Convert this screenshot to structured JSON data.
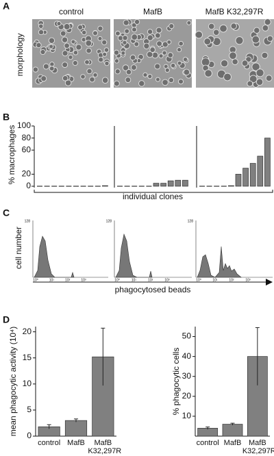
{
  "panel_labels": [
    "A",
    "B",
    "C",
    "D"
  ],
  "panel_a": {
    "columns": [
      "control",
      "MafB",
      "MafB K32,297R"
    ],
    "row_label": "morphology"
  },
  "panel_c": {
    "y_label": "cell number",
    "x_label": "phagocytosed beads",
    "ytick_label": "128",
    "xtick_labels": [
      "10⁰",
      "10¹",
      "10²",
      "10³"
    ]
  },
  "chart_data": [
    {
      "type": "bar",
      "y_label": "% macrophages",
      "x_label": "individual clones",
      "color": "#808080",
      "groups": [
        {
          "values": [
            0,
            0,
            0,
            0,
            0,
            0,
            0,
            0,
            0,
            1
          ]
        },
        {
          "values": [
            0,
            0,
            0,
            0,
            0,
            5,
            5,
            9,
            10,
            10
          ]
        },
        {
          "values": [
            0,
            0,
            0,
            0,
            1,
            20,
            30,
            38,
            50,
            80
          ]
        }
      ],
      "ylim": [
        0,
        100
      ],
      "yticks": [
        0,
        20,
        60,
        80,
        100
      ]
    },
    {
      "type": "errorbar",
      "y_label": "mean phagocytic activity (10⁴)",
      "color": "#808080",
      "categories": [
        "control",
        "MafB",
        "MafB K32,297R"
      ],
      "values": [
        1.8,
        3.0,
        15.2
      ],
      "errors": [
        0.4,
        0.3,
        5.5
      ],
      "ylim": [
        0,
        21
      ],
      "yticks": [
        0,
        5,
        10,
        15,
        20
      ]
    },
    {
      "type": "errorbar",
      "y_label": "% phagocytic cells",
      "color": "#808080",
      "categories": [
        "control",
        "MafB",
        "MafB K32,297R"
      ],
      "values": [
        4,
        6,
        40
      ],
      "errors": [
        0.6,
        0.5,
        14.5
      ],
      "ylim": [
        0,
        55
      ],
      "yticks": [
        10,
        20,
        30,
        40,
        50
      ]
    }
  ]
}
